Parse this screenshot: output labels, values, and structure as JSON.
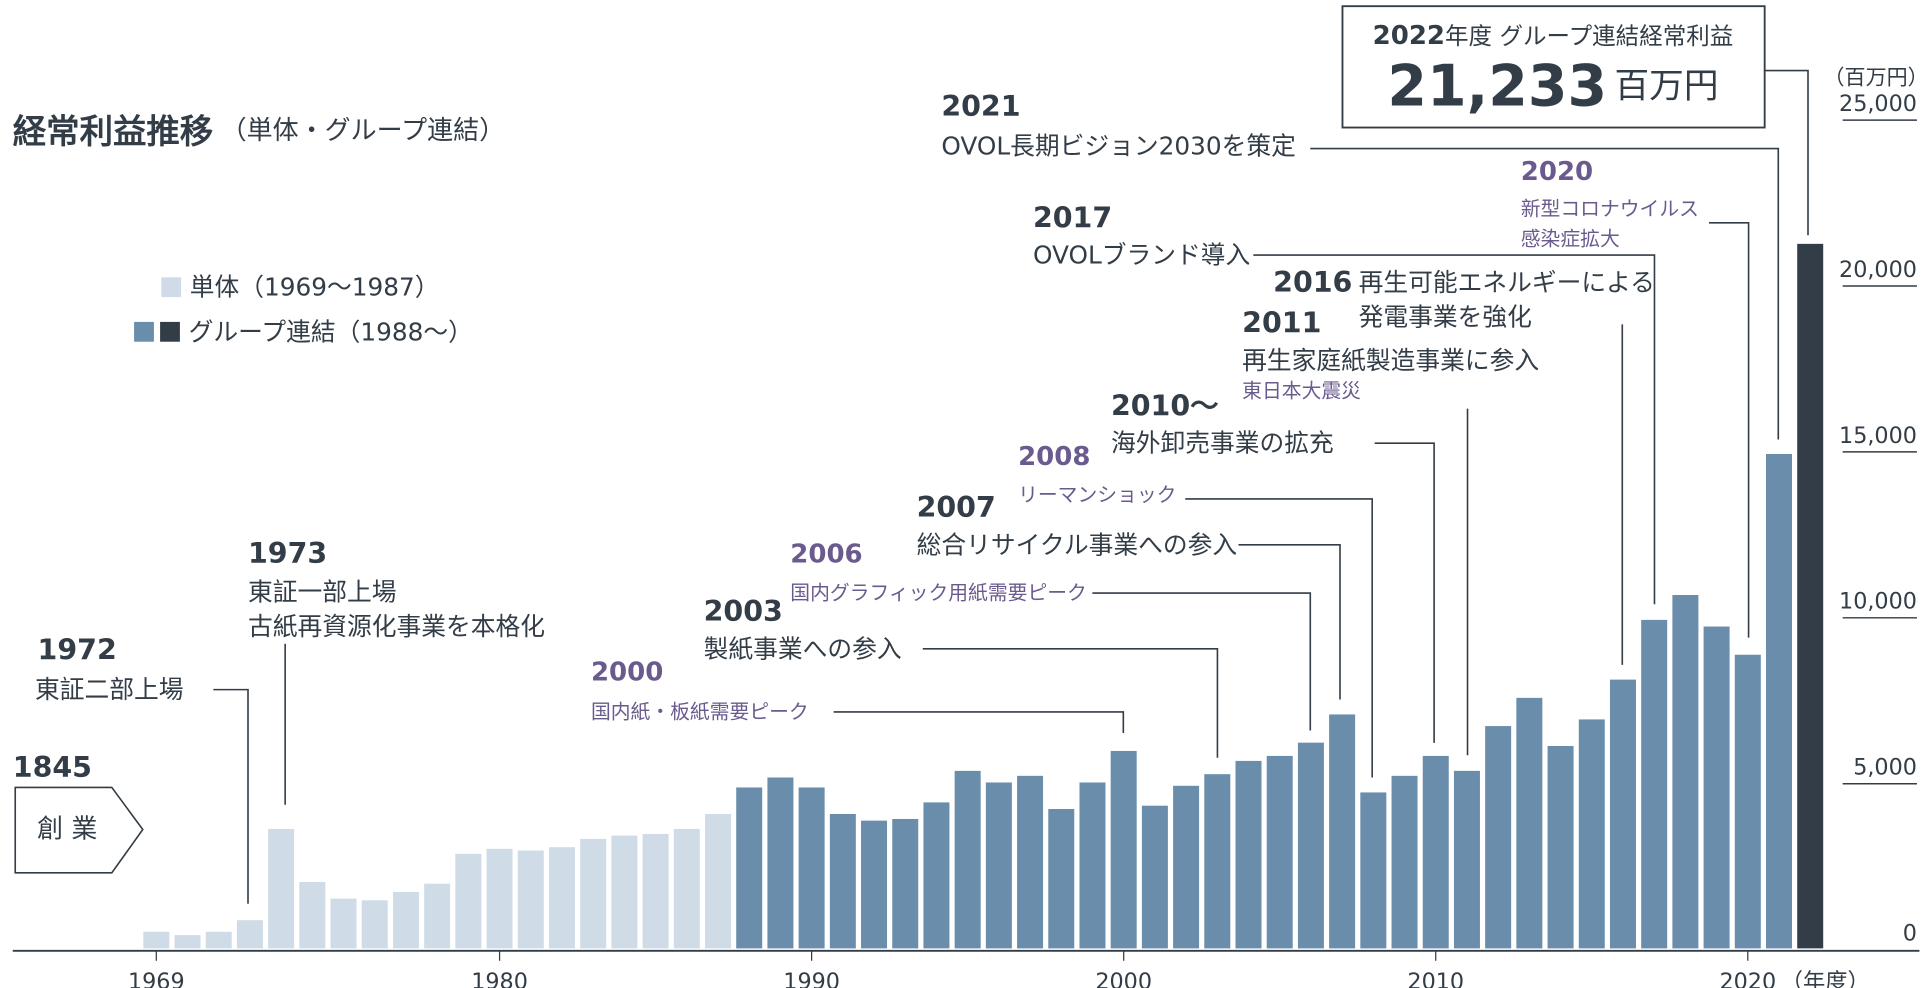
{
  "chart_data": {
    "type": "bar",
    "title": "経常利益推移",
    "subtitle": "（単体・グループ連結）",
    "y_unit": "（百万円）",
    "x_unit": "（年度）",
    "x": [
      1969,
      1970,
      1971,
      1972,
      1973,
      1974,
      1975,
      1976,
      1977,
      1978,
      1979,
      1980,
      1981,
      1982,
      1983,
      1984,
      1985,
      1986,
      1987,
      1988,
      1989,
      1990,
      1991,
      1992,
      1993,
      1994,
      1995,
      1996,
      1997,
      1998,
      1999,
      2000,
      2001,
      2002,
      2003,
      2004,
      2005,
      2006,
      2007,
      2008,
      2009,
      2010,
      2011,
      2012,
      2013,
      2014,
      2015,
      2016,
      2017,
      2018,
      2019,
      2020,
      2021,
      2022
    ],
    "xlim": [
      1964.4,
      2025.5
    ],
    "xticks": [
      1969,
      1980,
      1990,
      2000,
      2010,
      2020
    ],
    "ylim": [
      0,
      25000
    ],
    "yticks": [
      0,
      {
        "value": 5000,
        "label": "5,000"
      },
      {
        "value": 10000,
        "label": "10,000"
      },
      {
        "value": 15000,
        "label": "15,000"
      },
      {
        "value": 20000,
        "label": "20,000"
      },
      {
        "value": 25000,
        "label": "25,000"
      }
    ],
    "series": [
      {
        "name": "単体（1969～1987）",
        "color": "#cfdce7",
        "values": [
          500,
          400,
          500,
          850,
          3600,
          2000,
          1500,
          1450,
          1700,
          1950,
          2850,
          3000,
          2950,
          3050,
          3300,
          3400,
          3450,
          3600,
          4050,
          null,
          null,
          null,
          null,
          null,
          null,
          null,
          null,
          null,
          null,
          null,
          null,
          null,
          null,
          null,
          null,
          null,
          null,
          null,
          null,
          null,
          null,
          null,
          null,
          null,
          null,
          null,
          null,
          null,
          null,
          null,
          null,
          null,
          null,
          null
        ]
      },
      {
        "name": "グループ連結（1988～）",
        "color": "#6a8dab",
        "highlight_color": "#333d47",
        "values": [
          null,
          null,
          null,
          null,
          null,
          null,
          null,
          null,
          null,
          null,
          null,
          null,
          null,
          null,
          null,
          null,
          null,
          null,
          null,
          4850,
          5150,
          4850,
          4050,
          3850,
          3900,
          4400,
          5350,
          5000,
          5200,
          4200,
          5000,
          5950,
          4300,
          4900,
          5250,
          5650,
          5800,
          6200,
          7050,
          4700,
          5200,
          5800,
          5350,
          6700,
          7550,
          6100,
          6900,
          8100,
          9900,
          10650,
          9700,
          8850,
          14900,
          21233
        ],
        "value_labels": [
          null,
          null,
          null,
          null,
          null,
          null,
          null,
          null,
          null,
          null,
          null,
          null,
          null,
          null,
          null,
          null,
          null,
          null,
          null,
          null,
          null,
          null,
          null,
          null,
          null,
          null,
          null,
          null,
          null,
          null,
          null,
          null,
          null,
          null,
          null,
          null,
          null,
          null,
          null,
          null,
          null,
          null,
          null,
          null,
          null,
          null,
          null,
          null,
          null,
          null,
          null,
          null,
          null,
          "21,233"
        ]
      }
    ],
    "callout": {
      "year": "2022",
      "text": "年度 グループ連結経常利益",
      "unit": "百万円"
    },
    "founding": {
      "year": "1845",
      "label": "創 業"
    },
    "annotations": [
      {
        "year": "1972",
        "text": [
          "東証二部上場"
        ]
      },
      {
        "year": "1973",
        "text": [
          "東証一部上場",
          "古紙再資源化事業を本格化"
        ]
      },
      {
        "year": "2000",
        "text": [
          "国内紙・板紙需要ピーク"
        ],
        "color": "#6b5a8e"
      },
      {
        "year": "2003",
        "text": [
          "製紙事業への参入"
        ]
      },
      {
        "year": "2006",
        "text": [
          "国内グラフィック用紙需要ピーク"
        ],
        "color": "#6b5a8e"
      },
      {
        "year": "2007",
        "text": [
          "総合リサイクル事業への参入"
        ]
      },
      {
        "year": "2008",
        "text": [
          "リーマンショック"
        ],
        "color": "#6b5a8e"
      },
      {
        "year": "2010～",
        "text": [
          "海外卸売事業の拡充"
        ]
      },
      {
        "year": "2011",
        "text": [
          "再生家庭紙製造事業に参入"
        ],
        "notes": [
          "東日本大震災"
        ],
        "note_color": "#6b5a8e"
      },
      {
        "year": "2016",
        "text": [
          "再生可能エネルギーによる",
          "発電事業を強化"
        ]
      },
      {
        "year": "2017",
        "text": [
          "OVOLブランド導入"
        ]
      },
      {
        "year": "2020",
        "text": [
          "新型コロナウイルス",
          "感染症拡大"
        ],
        "color": "#6b5a8e"
      },
      {
        "year": "2021",
        "text": [
          "OVOL長期ビジョン2030を策定"
        ]
      }
    ]
  }
}
